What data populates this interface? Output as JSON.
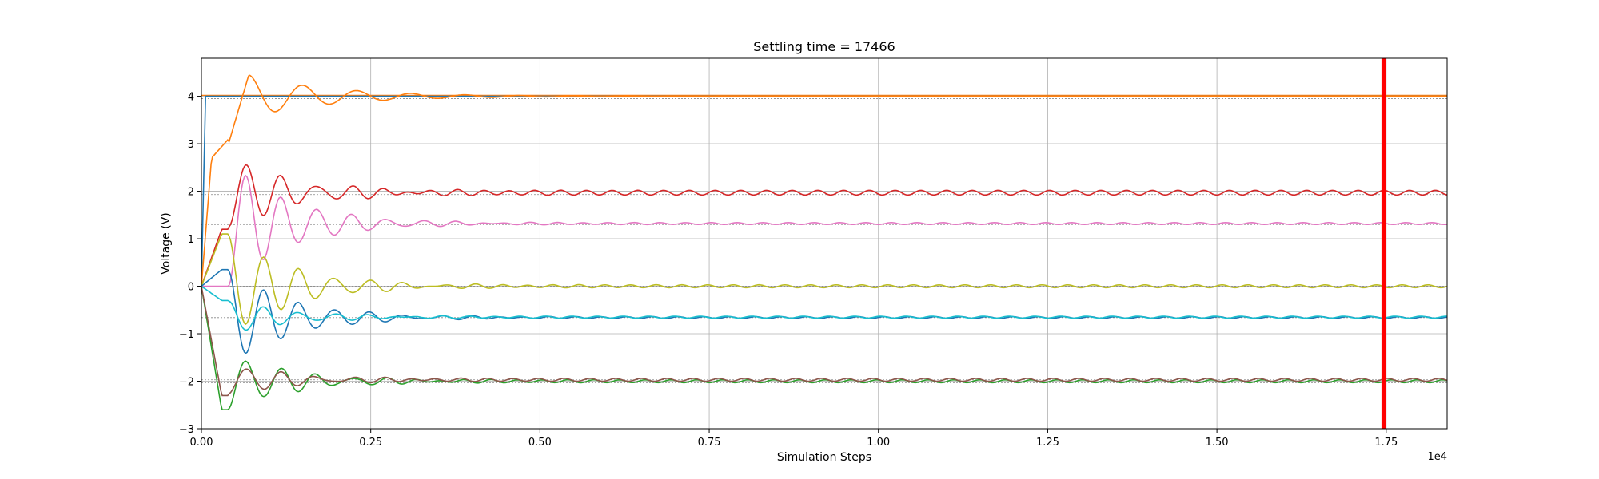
{
  "chart_data": {
    "type": "line",
    "title": "Settling time = 17466",
    "xlabel": "Simulation Steps",
    "ylabel": "Voltage (V)",
    "x_multiplier": "1e4",
    "xlim": [
      0,
      18400
    ],
    "ylim": [
      -3,
      4.8
    ],
    "x_ticks": [
      0,
      2500,
      5000,
      7500,
      10000,
      12500,
      15000,
      17500
    ],
    "x_tick_labels": [
      "0.00",
      "0.25",
      "0.50",
      "0.75",
      "1.00",
      "1.25",
      "1.50",
      "1.75"
    ],
    "y_ticks": [
      -3,
      -2,
      -1,
      0,
      1,
      2,
      3,
      4
    ],
    "y_tick_labels": [
      "−3",
      "−2",
      "−1",
      "0",
      "1",
      "2",
      "3",
      "4"
    ],
    "grid": true,
    "settling_time": 17466,
    "settling_line_color": "#ff0000",
    "series": [
      {
        "color": "#1f77b4",
        "target": 4.0,
        "kind": "step"
      },
      {
        "color": "#ff7f0e",
        "target": 4.0,
        "kind": "overshoot"
      },
      {
        "color": "#d62728",
        "target": 1.97,
        "kind": "osc"
      },
      {
        "color": "#e377c2",
        "target": 1.32,
        "kind": "osc"
      },
      {
        "color": "#bcbd22",
        "target": 0.0,
        "kind": "osc"
      },
      {
        "color": "#1f77b4",
        "target": -0.66,
        "kind": "osc"
      },
      {
        "color": "#17becf",
        "target": -0.65,
        "kind": "osc"
      },
      {
        "color": "#2ca02c",
        "target": -2.0,
        "kind": "osc"
      },
      {
        "color": "#8c564b",
        "target": -1.97,
        "kind": "osc"
      }
    ],
    "reference_lines": [
      {
        "y": 4.02,
        "color": "#ff7f0e"
      },
      {
        "y": 3.95,
        "color": "#888888"
      },
      {
        "y": 1.93,
        "color": "#888888"
      },
      {
        "y": 1.3,
        "color": "#888888"
      },
      {
        "y": 0.0,
        "color": "#888888"
      },
      {
        "y": -0.66,
        "color": "#888888"
      },
      {
        "y": -1.97,
        "color": "#888888"
      },
      {
        "y": -2.03,
        "color": "#888888"
      }
    ]
  }
}
